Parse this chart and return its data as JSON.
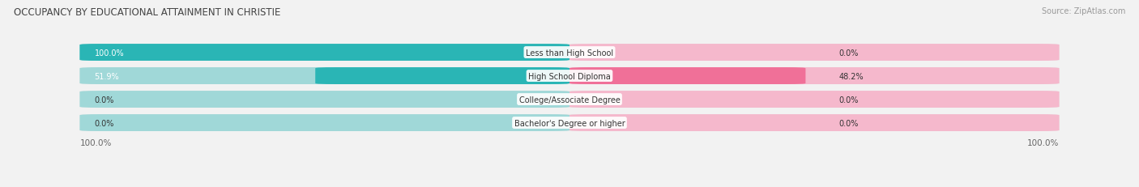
{
  "title": "OCCUPANCY BY EDUCATIONAL ATTAINMENT IN CHRISTIE",
  "source": "Source: ZipAtlas.com",
  "categories": [
    "Less than High School",
    "High School Diploma",
    "College/Associate Degree",
    "Bachelor's Degree or higher"
  ],
  "owner_values": [
    100.0,
    51.9,
    0.0,
    0.0
  ],
  "renter_values": [
    0.0,
    48.2,
    0.0,
    0.0
  ],
  "owner_color": "#2ab5b5",
  "renter_color": "#f07098",
  "owner_color_light": "#a0d8d8",
  "renter_color_light": "#f5b8cc",
  "bar_bg_color": "#e8e8e8",
  "bg_color": "#f2f2f2",
  "figsize": [
    14.06,
    2.32
  ],
  "dpi": 100
}
